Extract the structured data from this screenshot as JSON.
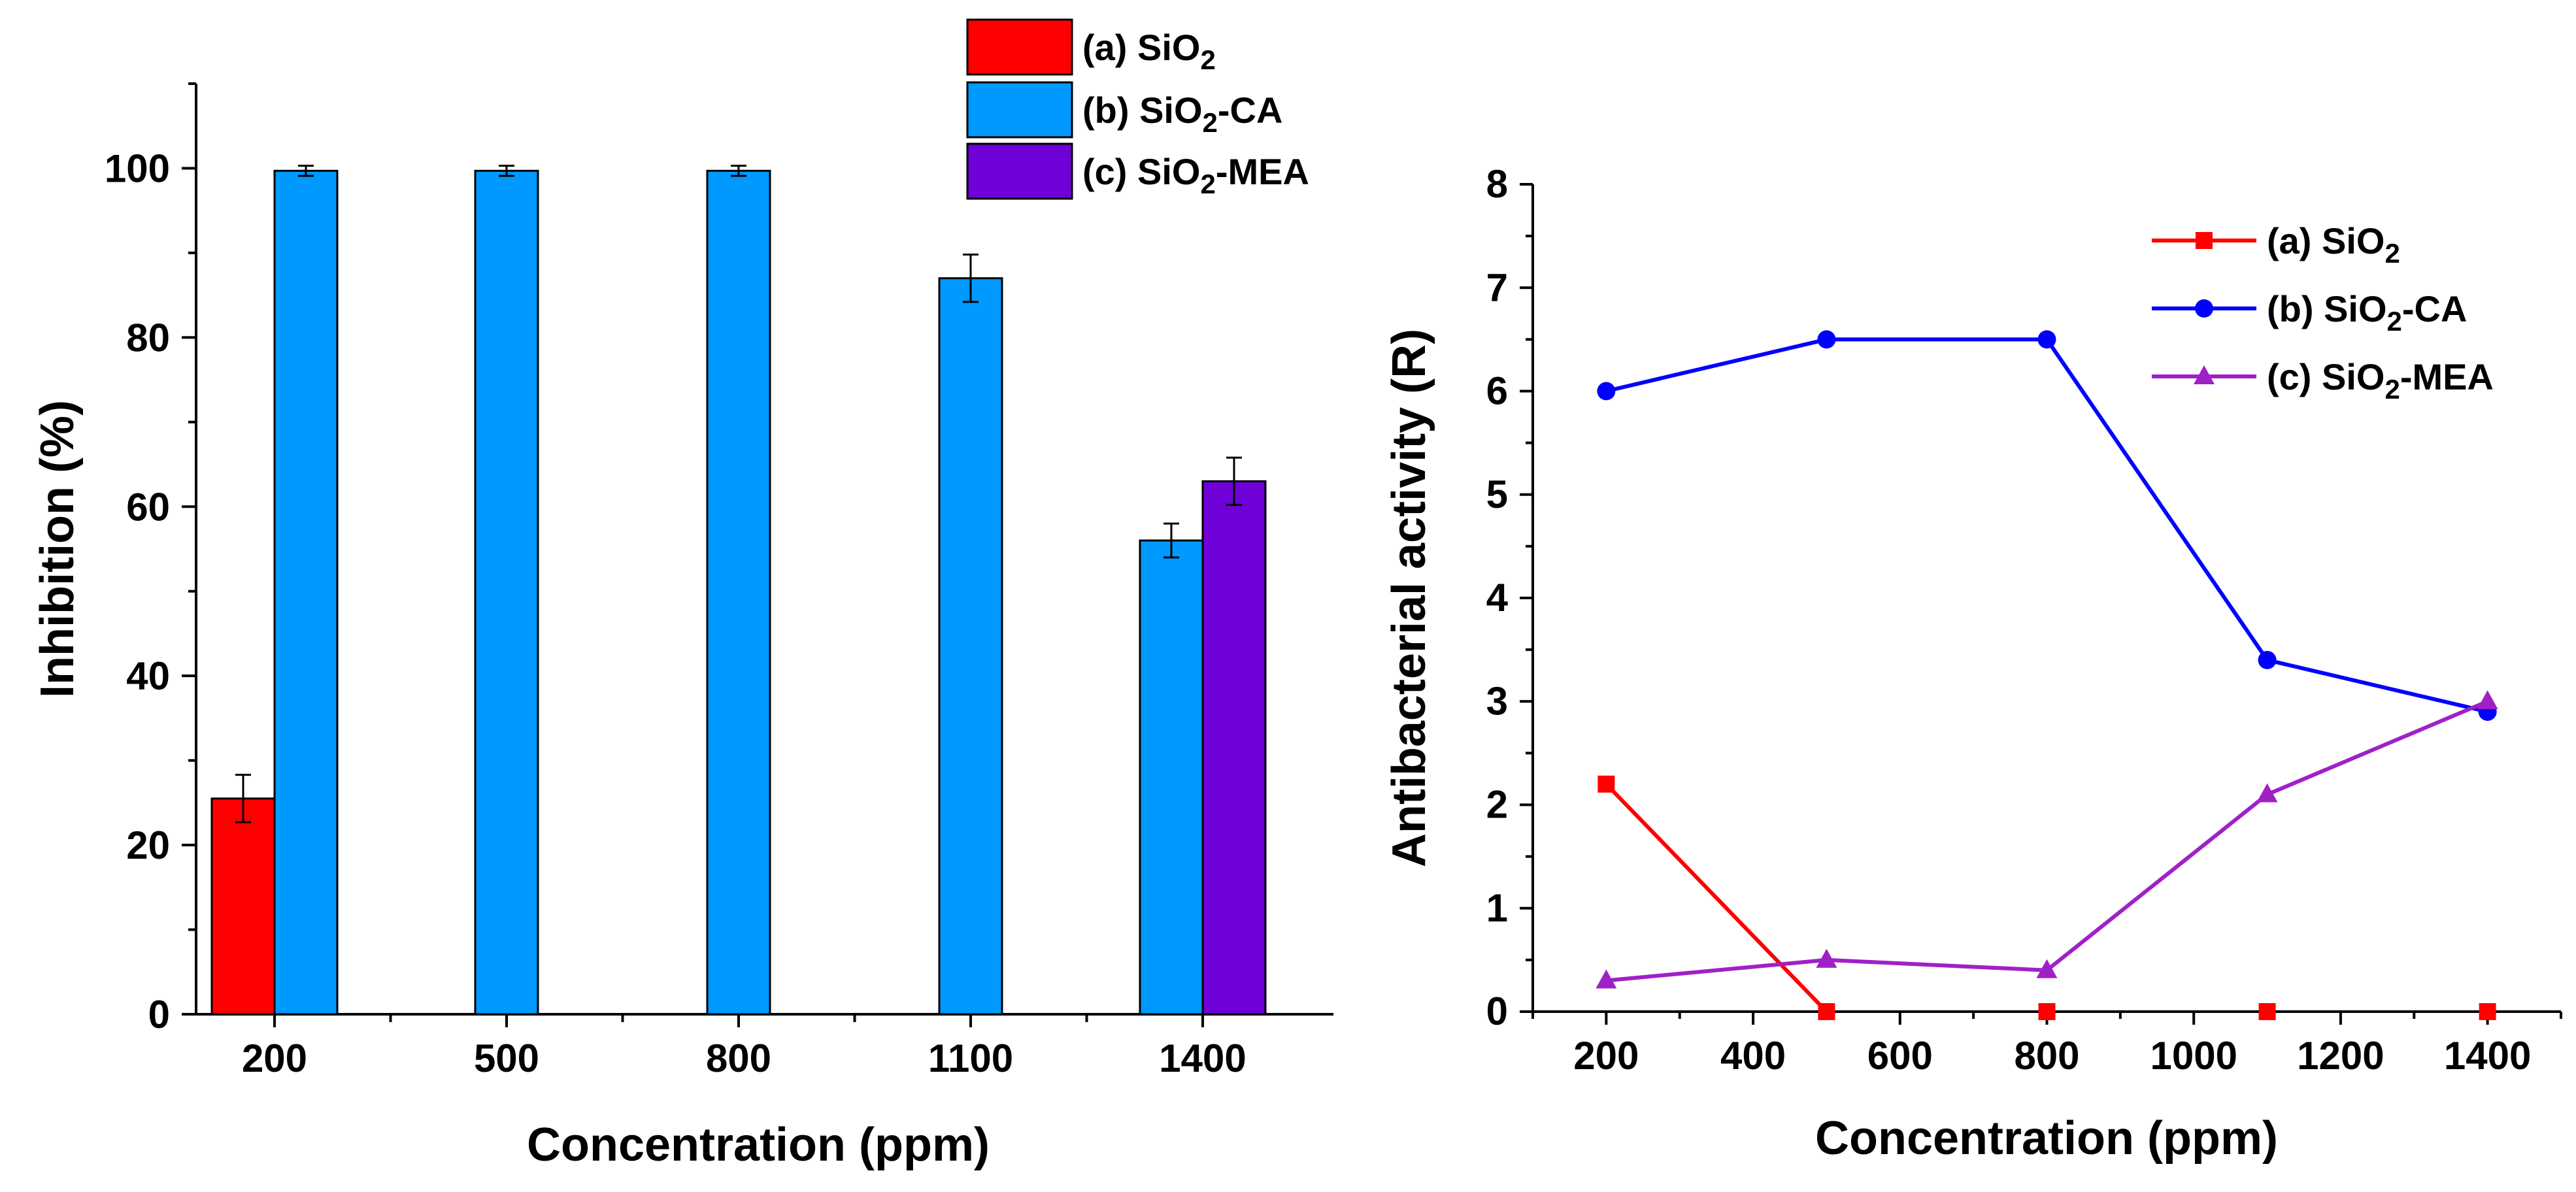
{
  "chart_data": [
    {
      "type": "bar",
      "title": "",
      "xlabel": "Concentration (ppm)",
      "ylabel": "Inhibition (%)",
      "ylim": [
        0,
        110
      ],
      "yticks": [
        0,
        20,
        40,
        60,
        80,
        100
      ],
      "categories": [
        "200",
        "500",
        "800",
        "1100",
        "1400"
      ],
      "series": [
        {
          "name": "(a) SiO2",
          "legend_base": "(a) SiO",
          "legend_sub": "2",
          "legend_suffix": "",
          "color": "#ff0000",
          "values": [
            25.5,
            null,
            null,
            null,
            null
          ],
          "errors": [
            2.8,
            null,
            null,
            null,
            null
          ]
        },
        {
          "name": "(b) SiO2-CA",
          "legend_base": "(b) SiO",
          "legend_sub": "2",
          "legend_suffix": "-CA",
          "color": "#0099ff",
          "values": [
            99.7,
            99.7,
            99.7,
            87,
            56
          ],
          "errors": [
            0.6,
            0.6,
            0.6,
            2.8,
            2
          ]
        },
        {
          "name": "(c) SiO2-MEA",
          "legend_base": "(c) SiO",
          "legend_sub": "2",
          "legend_suffix": "-MEA",
          "color": "#6f00d8",
          "values": [
            null,
            null,
            null,
            null,
            63
          ],
          "errors": [
            null,
            null,
            null,
            null,
            2.8
          ]
        }
      ],
      "legend_position": "top-center"
    },
    {
      "type": "line",
      "title": "",
      "xlabel": "Concentration (ppm)",
      "ylabel": "Antibacterial activity (R)",
      "xlim": [
        100,
        1500
      ],
      "ylim": [
        0,
        8
      ],
      "xticks": [
        200,
        400,
        600,
        800,
        1000,
        1200,
        1400
      ],
      "yticks": [
        0,
        1,
        2,
        3,
        4,
        5,
        6,
        7,
        8
      ],
      "series": [
        {
          "name": "(a) SiO2",
          "legend_base": "(a) SiO",
          "legend_sub": "2",
          "legend_suffix": "",
          "color": "#ff0000",
          "marker": "square",
          "x": [
            200,
            500,
            800,
            1100,
            1400
          ],
          "y": [
            2.2,
            0,
            0,
            0,
            0
          ],
          "line_points": 2
        },
        {
          "name": "(b) SiO2-CA",
          "legend_base": "(b) SiO",
          "legend_sub": "2",
          "legend_suffix": "-CA",
          "color": "#0000ff",
          "marker": "circle",
          "x": [
            200,
            500,
            800,
            1100,
            1400
          ],
          "y": [
            6,
            6.5,
            6.5,
            3.4,
            2.9
          ],
          "line_points": 5
        },
        {
          "name": "(c) SiO2-MEA",
          "legend_base": "(c) SiO",
          "legend_sub": "2",
          "legend_suffix": "-MEA",
          "color": "#a020c8",
          "marker": "triangle",
          "x": [
            200,
            500,
            800,
            1100,
            1400
          ],
          "y": [
            0.3,
            0.5,
            0.4,
            2.1,
            3
          ],
          "line_points": 5
        }
      ],
      "legend_position": "top-right"
    }
  ]
}
